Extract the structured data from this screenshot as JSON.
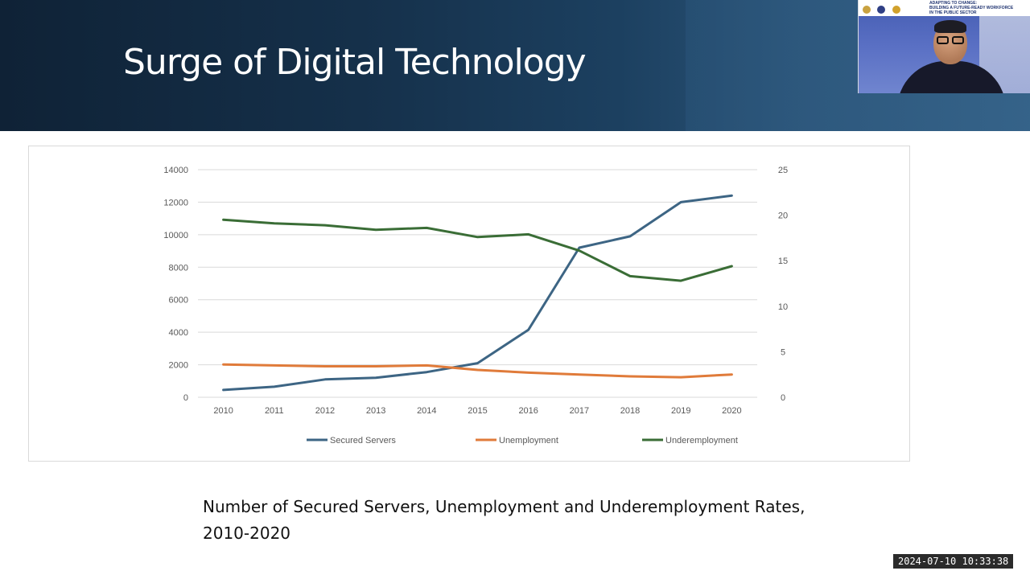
{
  "slide": {
    "title": "Surge of Digital Technology",
    "caption": "Number of Secured Servers, Unemployment and Underemployment Rates, 2010-2020"
  },
  "webcam": {
    "banner_title": "ADAPTING TO CHANGE:",
    "banner_line2": "BUILDING A FUTURE-READY WORKFORCE",
    "banner_line3": "IN THE PUBLIC SECTOR"
  },
  "timestamp": "2024-07-10  10:33:38",
  "colors": {
    "secured_servers": "#3d6584",
    "unemployment": "#e07b3a",
    "underemployment": "#3a6d36",
    "grid": "#d9d9d9",
    "tick": "#595959"
  },
  "chart_data": {
    "type": "line",
    "title": "",
    "xlabel": "",
    "ylabel": "",
    "y2label": "",
    "categories": [
      "2010",
      "2011",
      "2012",
      "2013",
      "2014",
      "2015",
      "2016",
      "2017",
      "2018",
      "2019",
      "2020"
    ],
    "ylim": [
      0,
      14000
    ],
    "yticks": [
      0,
      2000,
      4000,
      6000,
      8000,
      10000,
      12000,
      14000
    ],
    "y2lim": [
      0,
      25
    ],
    "y2ticks": [
      0,
      5,
      10,
      15,
      20,
      25
    ],
    "grid": true,
    "legend_position": "bottom",
    "series": [
      {
        "name": "Secured Servers",
        "axis": "left",
        "color": "#3d6584",
        "values": [
          450,
          650,
          1100,
          1200,
          1550,
          2100,
          4150,
          9200,
          9900,
          12000,
          12400
        ]
      },
      {
        "name": "Unemployment",
        "axis": "right",
        "color": "#e07b3a",
        "values": [
          3.6,
          3.5,
          3.4,
          3.4,
          3.5,
          3.0,
          2.7,
          2.5,
          2.3,
          2.2,
          2.5
        ]
      },
      {
        "name": "Underemployment",
        "axis": "right",
        "color": "#3a6d36",
        "values": [
          19.5,
          19.1,
          18.9,
          18.4,
          18.6,
          17.6,
          17.9,
          16.1,
          13.3,
          12.8,
          14.4
        ]
      }
    ]
  }
}
